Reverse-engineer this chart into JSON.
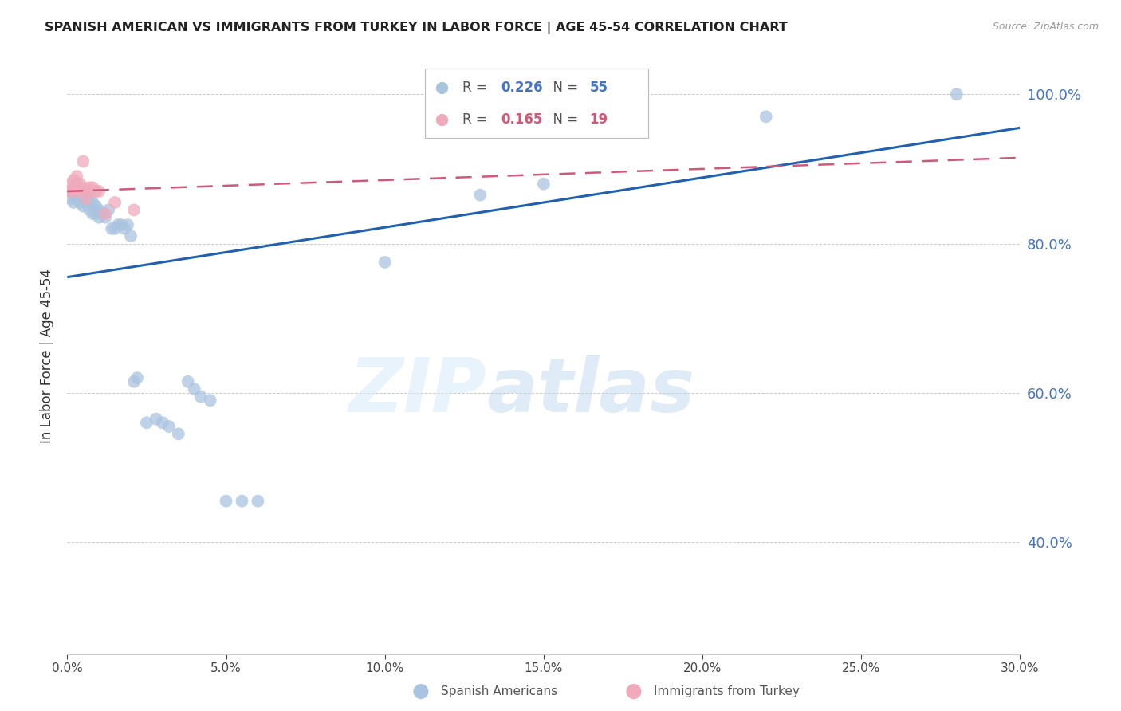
{
  "title": "SPANISH AMERICAN VS IMMIGRANTS FROM TURKEY IN LABOR FORCE | AGE 45-54 CORRELATION CHART",
  "source": "Source: ZipAtlas.com",
  "ylabel": "In Labor Force | Age 45-54",
  "xlim": [
    0.0,
    0.3
  ],
  "ylim": [
    0.25,
    1.05
  ],
  "yticks_right": [
    0.4,
    0.6,
    0.8,
    1.0
  ],
  "xticks": [
    0.0,
    0.05,
    0.1,
    0.15,
    0.2,
    0.25,
    0.3
  ],
  "blue_r": 0.226,
  "blue_n": 55,
  "pink_r": 0.165,
  "pink_n": 19,
  "blue_color": "#aac4df",
  "pink_color": "#f0aabb",
  "blue_line_color": "#2060b0",
  "pink_line_color": "#d05878",
  "legend_blue_label": "Spanish Americans",
  "legend_pink_label": "Immigrants from Turkey",
  "watermark_zip": "ZIP",
  "watermark_atlas": "atlas",
  "blue_scatter_x": [
    0.001,
    0.001,
    0.002,
    0.002,
    0.002,
    0.003,
    0.003,
    0.003,
    0.003,
    0.004,
    0.004,
    0.004,
    0.005,
    0.005,
    0.005,
    0.006,
    0.006,
    0.007,
    0.007,
    0.007,
    0.008,
    0.008,
    0.009,
    0.009,
    0.01,
    0.01,
    0.011,
    0.012,
    0.013,
    0.014,
    0.015,
    0.016,
    0.017,
    0.018,
    0.019,
    0.02,
    0.021,
    0.022,
    0.025,
    0.028,
    0.03,
    0.032,
    0.035,
    0.038,
    0.04,
    0.042,
    0.045,
    0.05,
    0.055,
    0.06,
    0.1,
    0.13,
    0.15,
    0.22,
    0.28
  ],
  "blue_scatter_y": [
    0.87,
    0.86,
    0.855,
    0.87,
    0.875,
    0.86,
    0.865,
    0.87,
    0.88,
    0.855,
    0.865,
    0.87,
    0.85,
    0.86,
    0.87,
    0.855,
    0.86,
    0.845,
    0.855,
    0.865,
    0.84,
    0.855,
    0.84,
    0.85,
    0.835,
    0.845,
    0.84,
    0.835,
    0.845,
    0.82,
    0.82,
    0.825,
    0.825,
    0.82,
    0.825,
    0.81,
    0.615,
    0.62,
    0.56,
    0.565,
    0.56,
    0.555,
    0.545,
    0.615,
    0.605,
    0.595,
    0.59,
    0.455,
    0.455,
    0.455,
    0.775,
    0.865,
    0.88,
    0.97,
    1.0
  ],
  "pink_scatter_x": [
    0.001,
    0.001,
    0.002,
    0.002,
    0.003,
    0.003,
    0.004,
    0.004,
    0.005,
    0.005,
    0.006,
    0.007,
    0.007,
    0.008,
    0.009,
    0.01,
    0.012,
    0.015,
    0.021
  ],
  "pink_scatter_y": [
    0.87,
    0.88,
    0.87,
    0.885,
    0.875,
    0.89,
    0.87,
    0.88,
    0.875,
    0.91,
    0.86,
    0.87,
    0.875,
    0.875,
    0.87,
    0.87,
    0.84,
    0.855,
    0.845
  ],
  "blue_trendline_x": [
    0.0,
    0.3
  ],
  "blue_trendline_y": [
    0.755,
    0.955
  ],
  "pink_trendline_x": [
    0.0,
    0.3
  ],
  "pink_trendline_y": [
    0.87,
    0.915
  ]
}
